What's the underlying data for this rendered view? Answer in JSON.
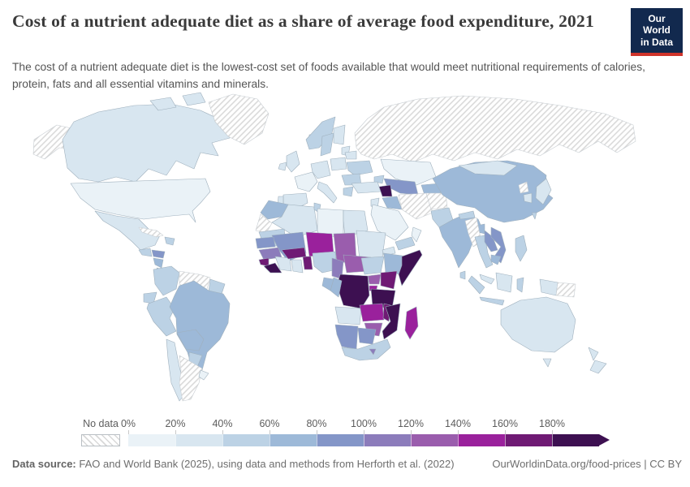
{
  "header": {
    "title": "Cost of a nutrient adequate diet as a share of average food expenditure, 2021",
    "subtitle": "The cost of a nutrient adequate diet is the lowest-cost set of foods available that would meet nutritional requirements of calories, protein, fats and all essential vitamins and minerals."
  },
  "logo": {
    "line1": "Our World",
    "line2": "in Data",
    "bg_color": "#12294e",
    "accent_color": "#cf342b"
  },
  "footer": {
    "source_label": "Data source:",
    "source_text": " FAO and World Bank (2025), using data and methods from Herforth et al. (2022)",
    "right_text": "OurWorldinData.org/food-prices | CC BY"
  },
  "chart_data": {
    "type": "heatmap",
    "subtype": "choropleth-world-map",
    "title": "Cost of a nutrient adequate diet as a share of average food expenditure",
    "year": "2021",
    "unit": "%",
    "legend": {
      "position": "bottom",
      "no_data_label": "No data",
      "tick_labels": [
        "0%",
        "20%",
        "40%",
        "60%",
        "80%",
        "100%",
        "120%",
        "140%",
        "160%",
        "180%"
      ],
      "bins": [
        "0-20%",
        "20-40%",
        "40-60%",
        "60-80%",
        "80-100%",
        "100-120%",
        "120-140%",
        "140-160%",
        "160-180%",
        "180%+"
      ],
      "colors": [
        "#eaf2f7",
        "#d8e6f0",
        "#bcd2e5",
        "#9db9d8",
        "#8496c8",
        "#8c7cbb",
        "#9a5dad",
        "#9a219c",
        "#6f1a74",
        "#3d1051"
      ],
      "no_data_fill": "hatched-gray"
    },
    "regions": {
      "united-states": "0-20%",
      "canada": "20-40%",
      "alaska": "no-data",
      "greenland": "no-data",
      "iceland": "20-40%",
      "mexico": "20-40%",
      "guatemala": "40-60%",
      "honduras": "80-100%",
      "nicaragua": "60-80%",
      "costa-rica-panama": "40-60%",
      "cuba": "no-data",
      "hispaniola": "40-60%",
      "colombia": "40-60%",
      "venezuela": "no-data",
      "guyana-suriname": "40-60%",
      "ecuador": "40-60%",
      "peru": "40-60%",
      "brazil": "60-80%",
      "bolivia": "60-80%",
      "paraguay": "40-60%",
      "chile": "20-40%",
      "argentina": "no-data",
      "uruguay": "0-20%",
      "united-kingdom": "20-40%",
      "ireland": "20-40%",
      "norway": "40-60%",
      "sweden": "40-60%",
      "finland": "20-40%",
      "baltics": "20-40%",
      "belarus": "20-40%",
      "poland": "20-40%",
      "germany-central-europe": "20-40%",
      "france": "0-20%",
      "spain": "20-40%",
      "portugal": "20-40%",
      "italy": "20-40%",
      "balkans": "40-60%",
      "greece": "40-60%",
      "ukraine": "40-60%",
      "russia": "no-data",
      "kazakhstan": "0-20%",
      "caucasus": "40-60%",
      "turkey": "20-40%",
      "syria": "180%+",
      "iraq": "60-80%",
      "iran": "no-data",
      "jordan-israel": "20-40%",
      "saudi-arabia": "0-20%",
      "yemen": "40-60%",
      "oman": "0-20%",
      "uzbekistan-turkmenistan": "80-100%",
      "kyrgyzstan-tajikistan": "60-80%",
      "afghanistan": "no-data",
      "pakistan": "40-60%",
      "india": "60-80%",
      "nepal": "40-60%",
      "bangladesh": "60-80%",
      "sri-lanka": "40-60%",
      "china": "60-80%",
      "mongolia": "20-40%",
      "north-korea": "no-data",
      "south-korea": "20-40%",
      "japan": "20-40%",
      "taiwan": "40-60%",
      "myanmar": "no-data",
      "thailand": "40-60%",
      "laos": "80-100%",
      "vietnam": "80-100%",
      "cambodia": "60-80%",
      "malaysia": "20-40%",
      "sumatra-indonesia": "40-60%",
      "java-indonesia": "40-60%",
      "borneo": "20-40%",
      "sulawesi": "40-60%",
      "philippines": "40-60%",
      "west-new-guinea": "20-40%",
      "papua-new-guinea": "no-data",
      "australia": "20-40%",
      "tasmania": "20-40%",
      "new-zealand": "20-40%",
      "morocco": "60-80%",
      "algeria": "20-40%",
      "tunisia": "40-60%",
      "libya": "0-20%",
      "egypt": "20-40%",
      "western-sahara": "no-data",
      "mauritania": "40-60%",
      "mali": "80-100%",
      "senegal": "80-100%",
      "guinea": "100-120%",
      "sierra-leone": "160-180%",
      "liberia": "180%+",
      "ivory-coast": "20-40%",
      "ghana": "20-40%",
      "togo-benin": "160-180%",
      "burkina-faso": "160-180%",
      "niger": "140-160%",
      "chad": "120-140%",
      "sudan": "20-40%",
      "eritrea": "20-40%",
      "nigeria": "40-60%",
      "cameroon": "100-120%",
      "central-african-republic": "120-140%",
      "south-sudan": "40-60%",
      "ethiopia": "60-80%",
      "somalia": "180%+",
      "uganda": "120-140%",
      "kenya": "160-180%",
      "rwanda-burundi": "140-160%",
      "dr-congo": "180%+",
      "congo": "60-80%",
      "gabon": "60-80%",
      "tanzania": "180%+",
      "angola": "20-40%",
      "zambia": "140-160%",
      "malawi": "160-180%",
      "mozambique": "180%+",
      "madagascar": "140-160%",
      "zimbabwe": "120-140%",
      "namibia": "80-100%",
      "botswana": "80-100%",
      "south-africa": "40-60%",
      "lesotho": "100-120%"
    }
  }
}
